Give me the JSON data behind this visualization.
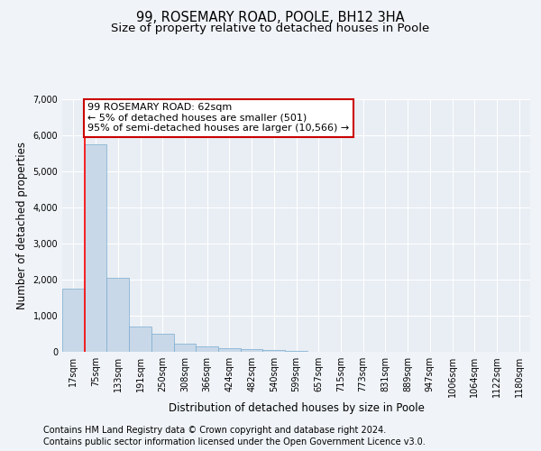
{
  "title": "99, ROSEMARY ROAD, POOLE, BH12 3HA",
  "subtitle": "Size of property relative to detached houses in Poole",
  "xlabel": "Distribution of detached houses by size in Poole",
  "ylabel": "Number of detached properties",
  "categories": [
    "17sqm",
    "75sqm",
    "133sqm",
    "191sqm",
    "250sqm",
    "308sqm",
    "366sqm",
    "424sqm",
    "482sqm",
    "540sqm",
    "599sqm",
    "657sqm",
    "715sqm",
    "773sqm",
    "831sqm",
    "889sqm",
    "947sqm",
    "1006sqm",
    "1064sqm",
    "1122sqm",
    "1180sqm"
  ],
  "values": [
    1750,
    5750,
    2050,
    700,
    490,
    230,
    160,
    110,
    70,
    50,
    30,
    5,
    5,
    0,
    0,
    0,
    0,
    0,
    0,
    0,
    0
  ],
  "bar_color": "#c8d8e8",
  "bar_edge_color": "#7aabcf",
  "red_line_x": 0.5,
  "annotation_title": "99 ROSEMARY ROAD: 62sqm",
  "annotation_line1": "← 5% of detached houses are smaller (501)",
  "annotation_line2": "95% of semi-detached houses are larger (10,566) →",
  "annotation_box_color": "#ffffff",
  "annotation_box_edge_color": "#cc0000",
  "footer_line1": "Contains HM Land Registry data © Crown copyright and database right 2024.",
  "footer_line2": "Contains public sector information licensed under the Open Government Licence v3.0.",
  "ylim": [
    0,
    7000
  ],
  "yticks": [
    0,
    1000,
    2000,
    3000,
    4000,
    5000,
    6000,
    7000
  ],
  "bg_color": "#f0f4f8",
  "plot_bg_color": "#e8eef4",
  "grid_color": "#ffffff",
  "title_fontsize": 10.5,
  "subtitle_fontsize": 9.5,
  "axis_label_fontsize": 8.5,
  "tick_fontsize": 7,
  "footer_fontsize": 7,
  "annot_fontsize": 8
}
